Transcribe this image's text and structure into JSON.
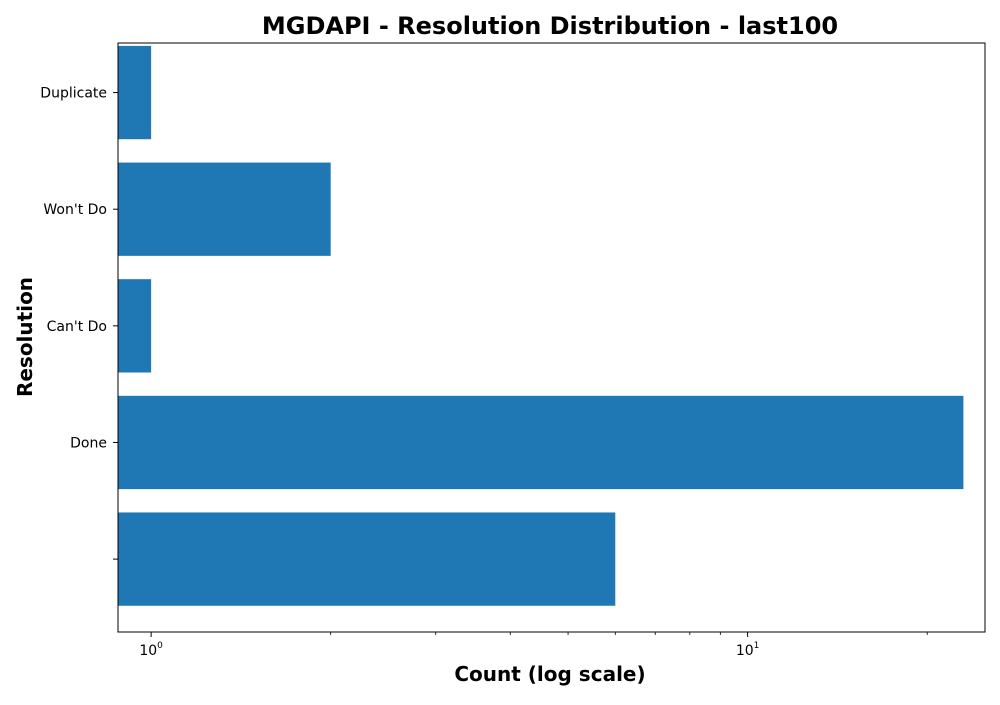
{
  "chart_data": {
    "type": "bar",
    "orientation": "horizontal",
    "title": "MGDAPI - Resolution Distribution - last100",
    "xlabel": "Count (log scale)",
    "ylabel": "Resolution",
    "x_scale": "log",
    "xlim": [
      0.88,
      25
    ],
    "x_ticks": [
      {
        "value": 1,
        "base": "10",
        "exp": "0"
      },
      {
        "value": 10,
        "base": "10",
        "exp": "1"
      }
    ],
    "x_minor_ticks": [
      2,
      3,
      4,
      5,
      6,
      7,
      8,
      9,
      20
    ],
    "categories": [
      "",
      "Done",
      "Can't Do",
      "Won't Do",
      "Duplicate"
    ],
    "values": [
      6,
      23,
      1,
      2,
      1
    ],
    "bar_color": "#1f77b4",
    "grid": false
  }
}
